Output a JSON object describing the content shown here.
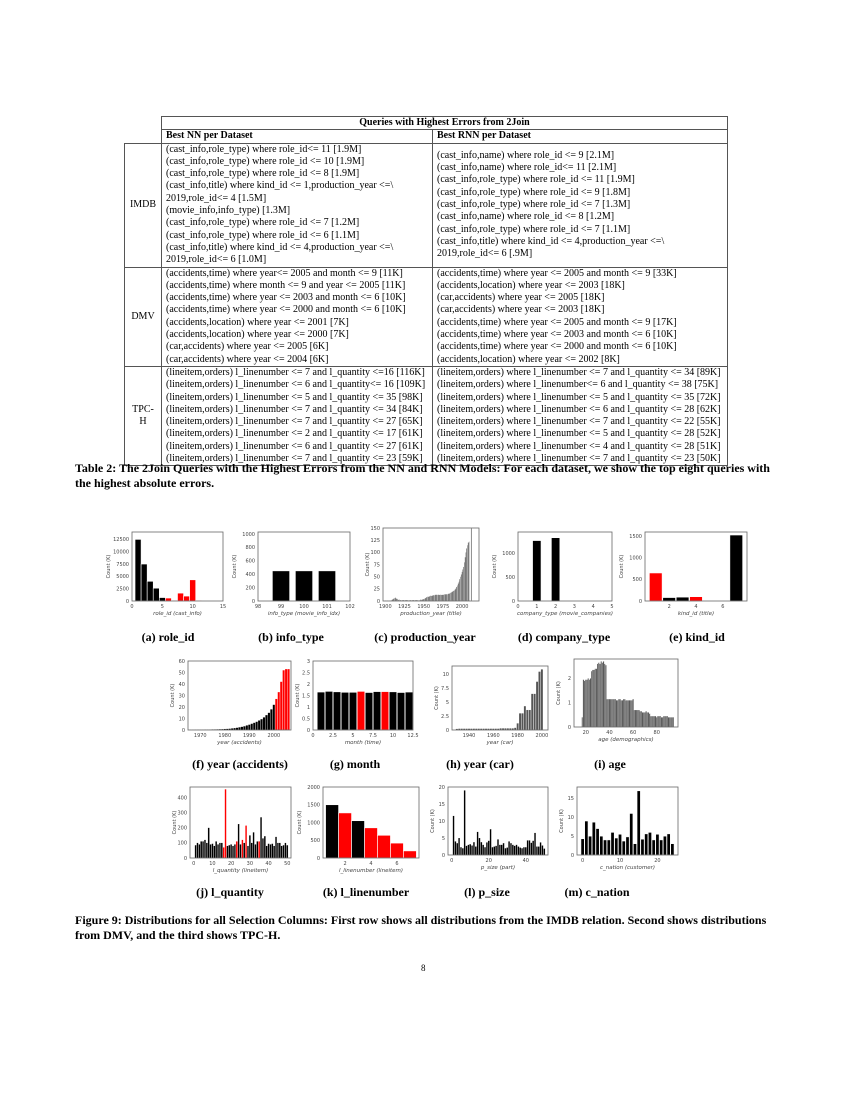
{
  "table": {
    "title": "Queries with Highest Errors from 2Join",
    "col_nn": "Best NN per Dataset",
    "col_rnn": "Best RNN per Dataset",
    "rows": [
      {
        "dataset": "IMDB",
        "nn": [
          "(cast_info,role_type) where role_id<= 11 [1.9M]",
          "(cast_info,role_type) where role_id <= 10 [1.9M]",
          "(cast_info,role_type) where role_id <= 8 [1.9M]",
          "(cast_info,title) where kind_id <= 1,production_year <=\\",
          "2019,role_id<= 4 [1.5M]",
          "(movie_info,info_type) [1.3M]",
          "(cast_info,role_type) where role_id <= 7 [1.2M]",
          "(cast_info,role_type) where role_id <= 6 [1.1M]",
          "(cast_info,title) where kind_id <= 4,production_year <=\\",
          "2019,role_id<= 6 [1.0M]"
        ],
        "rnn": [
          "(cast_info,name) where role_id <= 9 [2.1M]",
          "(cast_info,name) where role_id<= 11 [2.1M]",
          "(cast_info,role_type) where role_id <= 11 [1.9M]",
          "(cast_info,role_type) where role_id <= 9 [1.8M]",
          "(cast_info,role_type) where role_id <= 7 [1.3M]",
          "(cast_info,name) where role_id <= 8 [1.2M]",
          "(cast_info,role_type) where role_id <= 7 [1.1M]",
          "(cast_info,title) where kind_id <= 4,production_year <=\\",
          "2019,role_id<= 6 [.9M]"
        ]
      },
      {
        "dataset": "DMV",
        "nn": [
          "(accidents,time) where year<= 2005 and month <= 9 [11K]",
          "(accidents,time) where month <= 9 and year <= 2005 [11K]",
          "(accidents,time) where year <= 2003 and month <= 6 [10K]",
          "(accidents,time) where year <= 2000 and month <= 6 [10K]",
          "(accidents,location) where year <= 2001 [7K]",
          "(accidents,location) where year <= 2000 [7K]",
          "(car,accidents) where year <= 2005 [6K]",
          "(car,accidents) where year <= 2004 [6K]"
        ],
        "rnn": [
          "(accidents,time) where year <= 2005 and month <= 9 [33K]",
          "(accidents,location) where year <= 2003 [18K]",
          "(car,accidents) where year <= 2005 [18K]",
          "(car,accidents) where year <= 2003 [18K]",
          "(accidents,time) where year <= 2005 and month <= 9 [17K]",
          "(accidents,time) where year <= 2003 and month <= 6 [10K]",
          "(accidents,time) where year <= 2000 and month <= 6 [10K]",
          "(accidents,location) where year <= 2002 [8K]"
        ]
      },
      {
        "dataset": "TPC-H",
        "nn": [
          "(lineitem,orders) l_linenumber <= 7 and l_quantity <=16 [116K]",
          "(lineitem,orders) l_linenumber <= 6 and l_quantity<= 16 [109K]",
          "(lineitem,orders) l_linenumber <= 5 and l_quantity <= 35 [98K]",
          "(lineitem,orders) l_linenumber <= 7 and l_quantity <= 34 [84K]",
          "(lineitem,orders) l_linenumber <= 7 and l_quantity <= 27 [65K]",
          "(lineitem,orders) l_linenumber <= 2 and l_quantity <= 17 [61K]",
          "(lineitem,orders) l_linenumber <= 6 and l_quantity <= 27 [61K]",
          "(lineitem,orders) l_linenumber <= 7 and l_quantity <= 23 [59K]"
        ],
        "rnn": [
          "(lineitem,orders) where l_linenumber <= 7 and l_quantity <= 34 [89K]",
          "(lineitem,orders) where l_linenumber<= 6 and l_quantity <= 38 [75K]",
          "(lineitem,orders) where l_linenumber <= 5 and l_quantity <= 35 [72K]",
          "(lineitem,orders) where l_linenumber <= 6 and l_quantity <= 28 [62K]",
          "(lineitem,orders) where l_linenumber <= 7 and l_quantity <= 22 [55K]",
          "(lineitem,orders) where l_linenumber <= 5 and l_quantity <= 28 [52K]",
          "(lineitem,orders) where l_linenumber <= 4 and l_quantity <= 28 [51K]",
          "(lineitem,orders) where l_linenumber <= 7 and l_quantity <= 23 [50K]"
        ]
      }
    ]
  },
  "table_caption": "Table 2: The 2Join Queries with the Highest Errors from the NN and RNN Models: For each dataset, we show the top eight queries with the highest absolute errors.",
  "figure_caption": "Figure 9: Distributions for all Selection Columns: First row shows all distributions from the IMDB relation. Second shows distributions from DMV, and the third shows TPC-H.",
  "page_number": "8",
  "colors": {
    "bar": "#000000",
    "highlight": "#ff0000",
    "grey": "#555555"
  },
  "chart_data": [
    {
      "id": "a",
      "type": "bar",
      "caption": "(a) role_id",
      "xlabel": "role_id (cast_info)",
      "ylabel": "Count (K)",
      "xlim": [
        0,
        15
      ],
      "ylim": [
        0,
        14000
      ],
      "xticks": [
        0,
        5,
        10,
        15
      ],
      "yticks": [
        0,
        2500,
        5000,
        7500,
        10000,
        12500
      ],
      "bar_width": 1,
      "x": [
        1,
        2,
        3,
        4,
        5,
        6,
        7,
        8,
        9,
        10,
        11
      ],
      "values": [
        12500,
        7500,
        4000,
        2600,
        700,
        600,
        150,
        1600,
        1000,
        4300,
        150
      ],
      "highlight_x": [
        6,
        7,
        8,
        9,
        10,
        11
      ]
    },
    {
      "id": "b",
      "type": "bar",
      "caption": "(b) info_type",
      "xlabel": "info_type (movie_info_idx)",
      "ylabel": "Count (K)",
      "xlim": [
        98,
        102
      ],
      "ylim": [
        0,
        1030
      ],
      "xticks": [
        98,
        99,
        100,
        101,
        102
      ],
      "yticks": [
        0,
        200,
        400,
        600,
        800,
        1000
      ],
      "bar_width": 0.75,
      "x": [
        99,
        100,
        101
      ],
      "values": [
        450,
        450,
        450
      ],
      "highlight_x": []
    },
    {
      "id": "c",
      "type": "bar",
      "caption": "(c) production_year",
      "xlabel": "production_year (title)",
      "ylabel": "Count (K)",
      "xlim": [
        1897,
        2022
      ],
      "ylim": [
        0,
        150
      ],
      "xticks": [
        1900,
        1925,
        1950,
        1975,
        2000
      ],
      "yticks": [
        0,
        25,
        50,
        75,
        100,
        125,
        150
      ],
      "bar_width": 1,
      "x_start": 1900,
      "values": [
        1,
        1,
        1,
        1,
        1,
        1,
        1,
        1,
        2,
        3,
        4,
        5,
        6,
        7,
        6,
        5,
        4,
        3,
        3,
        2,
        2,
        2,
        2,
        2,
        2,
        2,
        2,
        2,
        2,
        2,
        2,
        2,
        2,
        2,
        2,
        2,
        2,
        2,
        2,
        2,
        2,
        2,
        2,
        2,
        2,
        2,
        3,
        3,
        3,
        4,
        4,
        5,
        6,
        7,
        8,
        9,
        9,
        10,
        10,
        11,
        11,
        11,
        12,
        12,
        12,
        13,
        13,
        13,
        13,
        13,
        13,
        13,
        13,
        13,
        13,
        13,
        13,
        14,
        14,
        14,
        14,
        14,
        15,
        15,
        16,
        17,
        18,
        19,
        20,
        21,
        22,
        24,
        26,
        29,
        32,
        36,
        40,
        45,
        50,
        55,
        60,
        65,
        70,
        80,
        90,
        100,
        108,
        115,
        120,
        122,
        0,
        0,
        150
      ],
      "highlight_x": [],
      "color": "grey"
    },
    {
      "id": "d",
      "type": "bar",
      "caption": "(d) company_type",
      "xlabel": "company_type (movie_companies)",
      "ylabel": "Count (K)",
      "xlim": [
        0,
        5
      ],
      "ylim": [
        0,
        1450
      ],
      "xticks": [
        0,
        1,
        2,
        3,
        4,
        5
      ],
      "yticks": [
        0,
        500,
        1000
      ],
      "bar_width": 0.45,
      "x": [
        1,
        2
      ],
      "values": [
        1270,
        1330
      ],
      "highlight_x": []
    },
    {
      "id": "e",
      "type": "bar",
      "caption": "(e) kind_id",
      "xlabel": "kind_id (title)",
      "ylabel": "Count (K)",
      "xlim": [
        0.2,
        7.8
      ],
      "ylim": [
        0,
        1600
      ],
      "xticks": [
        2,
        4,
        6
      ],
      "yticks": [
        0,
        500,
        1000,
        1500
      ],
      "bar_width": 0.95,
      "x": [
        1,
        2,
        3,
        4,
        7
      ],
      "values": [
        650,
        80,
        90,
        100,
        1530
      ],
      "highlight_x": [
        1,
        4
      ]
    },
    {
      "id": "f",
      "type": "bar",
      "caption": "(f) year (accidents)",
      "xlabel": "year (accidents)",
      "ylabel": "Count (K)",
      "xlim": [
        1965,
        2007
      ],
      "ylim": [
        0,
        60
      ],
      "xticks": [
        1970,
        1980,
        1990,
        2000
      ],
      "yticks": [
        0,
        10,
        20,
        30,
        40,
        50,
        60
      ],
      "bar_width": 0.9,
      "x_start": 1966,
      "values": [
        0.2,
        0.2,
        0.3,
        0.3,
        0.3,
        0.3,
        0.4,
        0.4,
        0.4,
        0.5,
        0.5,
        0.6,
        0.7,
        0.8,
        0.9,
        1,
        1.2,
        1.4,
        1.7,
        2,
        2.4,
        2.8,
        3.3,
        4,
        4.7,
        5.5,
        6.3,
        7.2,
        8.3,
        9.5,
        11,
        13,
        15,
        18,
        22,
        27,
        33,
        42,
        52,
        53,
        53
      ],
      "highlight_x": [
        2001,
        2002,
        2003,
        2004,
        2005,
        2006
      ]
    },
    {
      "id": "g",
      "type": "bar",
      "caption": "(g) month",
      "xlabel": "month (time)",
      "ylabel": "Count (K)",
      "xlim": [
        0,
        12.5
      ],
      "ylim": [
        0,
        3
      ],
      "xticks": [
        0,
        2.5,
        5,
        7.5,
        10,
        12.5
      ],
      "yticks": [
        0,
        0.5,
        1,
        1.5,
        2,
        2.5,
        3
      ],
      "bar_width": 0.95,
      "x": [
        1,
        2,
        3,
        4,
        5,
        6,
        7,
        8,
        9,
        10,
        11,
        12
      ],
      "values": [
        1.65,
        1.68,
        1.66,
        1.64,
        1.64,
        1.68,
        1.63,
        1.67,
        1.67,
        1.66,
        1.63,
        1.65
      ],
      "highlight_x": [
        6,
        9
      ]
    },
    {
      "id": "h",
      "type": "bar",
      "caption": "(h) year (car)",
      "xlabel": "year (car)",
      "ylabel": "Count (K)",
      "xlim": [
        1926,
        2005
      ],
      "ylim": [
        0,
        11.5
      ],
      "xticks": [
        1940,
        1960,
        1980,
        2000
      ],
      "yticks": [
        0,
        2.5,
        5,
        7.5,
        10
      ],
      "bar_width": 1.7,
      "x_start": 1930,
      "x_step": 2,
      "values": [
        0.2,
        0.25,
        0.25,
        0.25,
        0.25,
        0.25,
        0.25,
        0.25,
        0.25,
        0.25,
        0.25,
        0.25,
        0.25,
        0.25,
        0.25,
        0.25,
        0.25,
        0.25,
        0.3,
        0.3,
        0.3,
        0.3,
        0.3,
        0.3,
        0.4,
        1.2,
        3.0,
        3.0,
        4.3,
        3.6,
        3.6,
        6.5,
        6.5,
        8.7,
        10.5,
        10.9
      ],
      "highlight_x": [],
      "color": "grey"
    },
    {
      "id": "i",
      "type": "bar",
      "caption": "(i) age",
      "xlabel": "age (demographics)",
      "ylabel": "Count (K)",
      "xlim": [
        10,
        98
      ],
      "ylim": [
        0,
        2.8
      ],
      "xticks": [
        20,
        40,
        60,
        80
      ],
      "yticks": [
        0,
        1,
        2
      ],
      "bar_width": 1,
      "x_start": 17,
      "values": [
        0.4,
        1.95,
        1.9,
        1.95,
        1.95,
        2.0,
        1.95,
        2.0,
        2.3,
        2.35,
        2.35,
        2.4,
        2.4,
        2.6,
        2.65,
        2.6,
        2.7,
        2.65,
        2.7,
        2.6,
        2.55,
        1.15,
        1.15,
        1.15,
        1.15,
        1.15,
        1.15,
        1.15,
        1.15,
        1.1,
        1.1,
        1.15,
        1.15,
        1.1,
        1.1,
        1.15,
        1.15,
        1.1,
        1.1,
        1.1,
        1.1,
        1.1,
        1.1,
        1.15,
        0.7,
        0.7,
        0.7,
        0.7,
        0.7,
        0.65,
        0.65,
        0.6,
        0.6,
        0.6,
        0.65,
        0.6,
        0.6,
        0.55,
        0.45,
        0.45,
        0.45,
        0.45,
        0.45,
        0.4,
        0.45,
        0.45,
        0.45,
        0.4,
        0.4,
        0.45,
        0.45,
        0.45,
        0.45,
        0.4,
        0.4,
        0.4,
        0.4,
        0.4
      ],
      "highlight_x": [],
      "color": "grey"
    },
    {
      "id": "j",
      "type": "bar",
      "caption": "(j) l_quantity",
      "xlabel": "l_quantity (lineitem)",
      "ylabel": "Count (K)",
      "xlim": [
        -2,
        52
      ],
      "ylim": [
        0,
        470
      ],
      "xticks": [
        0,
        10,
        20,
        30,
        40,
        50
      ],
      "yticks": [
        0,
        100,
        200,
        300,
        400
      ],
      "bar_width": 0.85,
      "x_start": 1,
      "values": [
        85,
        100,
        90,
        110,
        110,
        120,
        100,
        200,
        90,
        95,
        80,
        110,
        90,
        100,
        100,
        70,
        455,
        80,
        85,
        90,
        80,
        90,
        110,
        225,
        90,
        120,
        100,
        215,
        80,
        150,
        100,
        170,
        90,
        110,
        110,
        270,
        130,
        145,
        80,
        95,
        90,
        95,
        80,
        140,
        100,
        100,
        80,
        85,
        100,
        85
      ],
      "highlight_x": [
        16,
        17,
        23,
        26,
        28,
        35
      ]
    },
    {
      "id": "k",
      "type": "bar",
      "caption": "(k) l_linenumber",
      "xlabel": "l_linenumber (lineitem)",
      "ylabel": "Count (K)",
      "xlim": [
        0.3,
        7.7
      ],
      "ylim": [
        0,
        2000
      ],
      "xticks": [
        2,
        4,
        6
      ],
      "yticks": [
        0,
        500,
        1000,
        1500,
        2000
      ],
      "bar_width": 1,
      "x": [
        1,
        2,
        3,
        4,
        5,
        6,
        7
      ],
      "values": [
        1500,
        1270,
        1050,
        850,
        640,
        420,
        200
      ],
      "highlight_x": [
        2,
        4,
        5,
        6,
        7
      ]
    },
    {
      "id": "l",
      "type": "bar",
      "caption": "(l) p_size",
      "xlabel": "p_size (part)",
      "ylabel": "Count (K)",
      "xlim": [
        -2,
        52
      ],
      "ylim": [
        0,
        20
      ],
      "xticks": [
        0,
        20,
        40
      ],
      "yticks": [
        0,
        5,
        10,
        15,
        20
      ],
      "bar_width": 0.85,
      "x_start": 1,
      "values": [
        11.5,
        4,
        3.5,
        5,
        2.3,
        2,
        19,
        2.7,
        3,
        3.2,
        2.8,
        3.8,
        2.5,
        6.8,
        5,
        3.8,
        3,
        2.3,
        3.7,
        4.2,
        7.6,
        2.3,
        2.5,
        2.7,
        4.6,
        3,
        3,
        3.5,
        2,
        2.2,
        4,
        3.5,
        3,
        2.7,
        3,
        2.5,
        2.2,
        2,
        2.3,
        2.3,
        4.3,
        4.3,
        3.6,
        4.2,
        6.5,
        2.5,
        2.5,
        3.7,
        2.8,
        1.9
      ],
      "highlight_x": []
    },
    {
      "id": "m",
      "type": "bar",
      "caption": "(m) c_nation",
      "xlabel": "c_nation (customer)",
      "ylabel": "Count (K)",
      "xlim": [
        -1.5,
        25.5
      ],
      "ylim": [
        0,
        18
      ],
      "xticks": [
        0,
        10,
        20
      ],
      "yticks": [
        0,
        5,
        10,
        15
      ],
      "bar_width": 0.9,
      "x_start": 0,
      "values": [
        4.3,
        9,
        5,
        8.7,
        7,
        5,
        4,
        4,
        6,
        4.5,
        5.5,
        3.7,
        4.8,
        11,
        3,
        17,
        4.2,
        5.6,
        6,
        4,
        5.5,
        4,
        5,
        5.6,
        3
      ],
      "highlight_x": []
    }
  ]
}
